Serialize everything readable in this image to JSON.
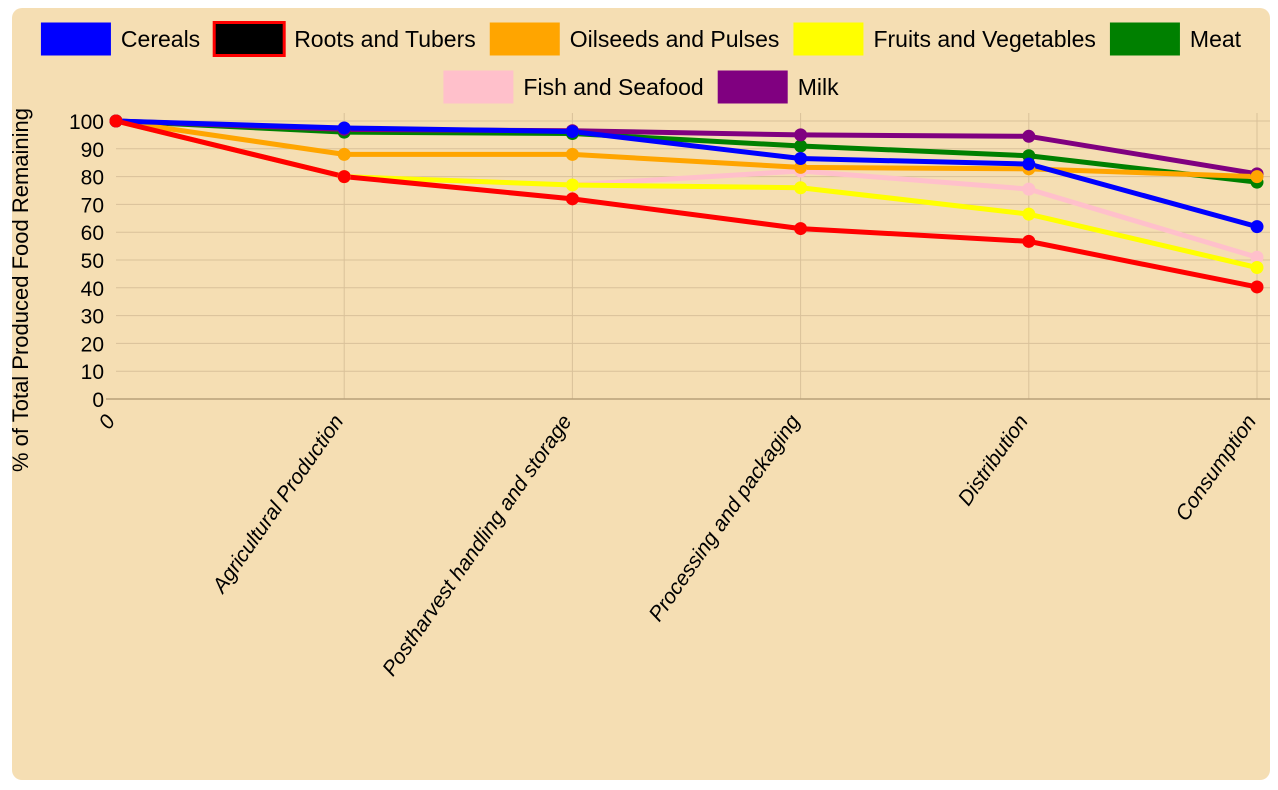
{
  "chart_data": {
    "type": "line",
    "ylabel": "% of Total Produced Food Remaining",
    "xlabel": "",
    "ylim": [
      0,
      100
    ],
    "yticks": [
      0,
      10,
      20,
      30,
      40,
      50,
      60,
      70,
      80,
      90,
      100
    ],
    "categories": [
      "0",
      "Agricultural Production",
      "Postharvest handling and storage",
      "Processing and packaging",
      "Distribution",
      "Consumption"
    ],
    "grid": true,
    "legend_position": "top",
    "series": [
      {
        "name": "Cereals",
        "color": "#0000ff",
        "legend_border": "",
        "values": [
          100,
          97.5,
          96.2,
          86.5,
          84.5,
          62
        ]
      },
      {
        "name": "Roots and Tubers",
        "color": "#ff0000",
        "legend_fill": "#000000",
        "legend_border": "#ff0000",
        "values": [
          100,
          80,
          72,
          61.3,
          56.7,
          40.3
        ]
      },
      {
        "name": "Oilseeds and Pulses",
        "color": "#ffa500",
        "legend_border": "",
        "values": [
          100,
          88,
          88,
          83.3,
          82.8,
          80
        ]
      },
      {
        "name": "Fruits and Vegetables",
        "color": "#ffff00",
        "legend_border": "",
        "values": [
          100,
          80,
          77,
          76,
          66.5,
          47.3
        ]
      },
      {
        "name": "Meat",
        "color": "#008000",
        "legend_border": "",
        "values": [
          100,
          96,
          95.5,
          91,
          87.5,
          78
        ]
      },
      {
        "name": "Fish and Seafood",
        "color": "#ffc0cb",
        "legend_border": "",
        "values": [
          100,
          80,
          77,
          82,
          75.5,
          51
        ]
      },
      {
        "name": "Milk",
        "color": "#800080",
        "legend_border": "",
        "values": [
          100,
          97,
          96.5,
          95,
          94.5,
          81
        ]
      }
    ],
    "draw_order": [
      "Fish and Seafood",
      "Fruits and Vegetables",
      "Meat",
      "Milk",
      "Oilseeds and Pulses",
      "Cereals",
      "Roots and Tubers"
    ],
    "colors": {
      "background": "#f5deb3",
      "grid": "#d9c19a",
      "axis": "#b8a07a"
    }
  }
}
